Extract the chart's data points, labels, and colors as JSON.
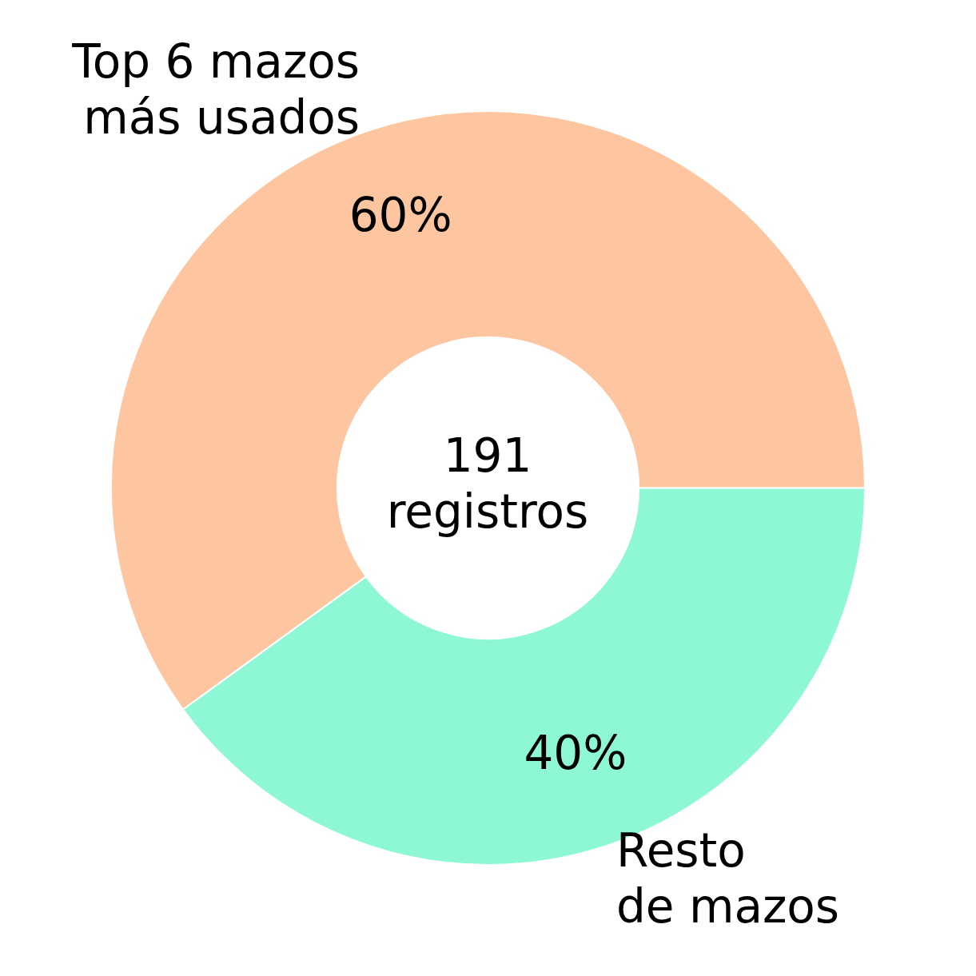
{
  "chart_data": {
    "type": "donut",
    "categories": [
      "Top 6 mazos\nmás usados",
      "Resto\nde mazos"
    ],
    "values": [
      60,
      40
    ],
    "value_labels": [
      "60%",
      "40%"
    ],
    "colors": [
      "#fec6a0",
      "#8ef7d6"
    ],
    "annotations": [
      "191\nregistros"
    ],
    "legend": false
  }
}
